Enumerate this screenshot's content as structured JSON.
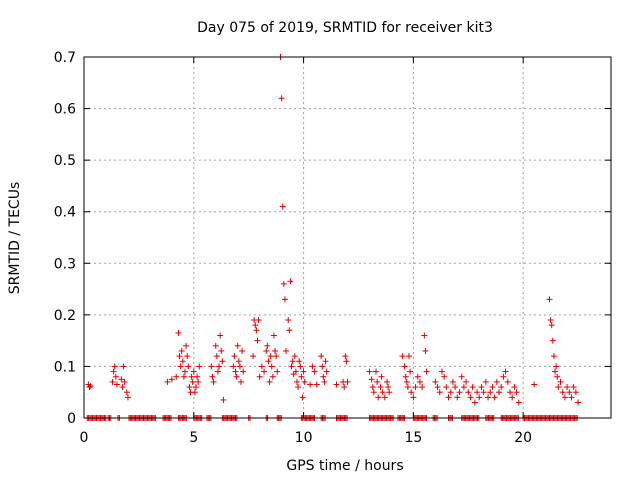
{
  "chart_data": {
    "type": "scatter",
    "title": "Day 075 of 2019, SRMTID for receiver kit3",
    "xlabel": "GPS time / hours",
    "ylabel": "SRMTID / TECUs",
    "xlim": [
      0,
      24
    ],
    "ylim": [
      0,
      0.7
    ],
    "x_ticks": [
      "0",
      "5",
      "10",
      "15",
      "20"
    ],
    "y_ticks": [
      "0",
      "0.1",
      "0.2",
      "0.3",
      "0.4",
      "0.5",
      "0.6",
      "0.7"
    ],
    "x_tick_values": [
      0,
      5,
      10,
      15,
      20
    ],
    "y_tick_values": [
      0,
      0.1,
      0.2,
      0.3,
      0.4,
      0.5,
      0.6,
      0.7
    ],
    "grid": true,
    "marker": "+",
    "marker_color": "#e00000",
    "series": [
      {
        "name": "kit3",
        "points": [
          [
            0.2,
            0.065
          ],
          [
            0.25,
            0.06
          ],
          [
            0.3,
            0.062
          ],
          [
            1.3,
            0.07
          ],
          [
            1.35,
            0.09
          ],
          [
            1.4,
            0.1
          ],
          [
            1.45,
            0.08
          ],
          [
            1.5,
            0.065
          ],
          [
            1.7,
            0.075
          ],
          [
            1.75,
            0.06
          ],
          [
            1.8,
            0.1
          ],
          [
            1.85,
            0.07
          ],
          [
            1.95,
            0.05
          ],
          [
            2.0,
            0.04
          ],
          [
            3.8,
            0.07
          ],
          [
            4.0,
            0.075
          ],
          [
            4.2,
            0.08
          ],
          [
            4.3,
            0.165
          ],
          [
            4.35,
            0.12
          ],
          [
            4.4,
            0.1
          ],
          [
            4.45,
            0.13
          ],
          [
            4.5,
            0.11
          ],
          [
            4.55,
            0.08
          ],
          [
            4.6,
            0.09
          ],
          [
            4.65,
            0.14
          ],
          [
            4.7,
            0.12
          ],
          [
            4.75,
            0.1
          ],
          [
            4.8,
            0.06
          ],
          [
            4.85,
            0.05
          ],
          [
            4.9,
            0.08
          ],
          [
            4.95,
            0.07
          ],
          [
            5.0,
            0.09
          ],
          [
            5.05,
            0.05
          ],
          [
            5.1,
            0.06
          ],
          [
            5.15,
            0.08
          ],
          [
            5.2,
            0.07
          ],
          [
            5.25,
            0.1
          ],
          [
            5.8,
            0.1
          ],
          [
            5.85,
            0.08
          ],
          [
            5.9,
            0.07
          ],
          [
            6.0,
            0.14
          ],
          [
            6.05,
            0.12
          ],
          [
            6.1,
            0.09
          ],
          [
            6.15,
            0.1
          ],
          [
            6.2,
            0.16
          ],
          [
            6.25,
            0.13
          ],
          [
            6.3,
            0.11
          ],
          [
            6.35,
            0.035
          ],
          [
            6.8,
            0.1
          ],
          [
            6.85,
            0.12
          ],
          [
            6.9,
            0.09
          ],
          [
            6.95,
            0.08
          ],
          [
            7.0,
            0.14
          ],
          [
            7.05,
            0.11
          ],
          [
            7.1,
            0.1
          ],
          [
            7.15,
            0.07
          ],
          [
            7.2,
            0.13
          ],
          [
            7.25,
            0.09
          ],
          [
            7.7,
            0.12
          ],
          [
            7.75,
            0.19
          ],
          [
            7.8,
            0.18
          ],
          [
            7.85,
            0.17
          ],
          [
            7.9,
            0.15
          ],
          [
            7.95,
            0.19
          ],
          [
            8.0,
            0.08
          ],
          [
            8.1,
            0.1
          ],
          [
            8.2,
            0.09
          ],
          [
            8.3,
            0.13
          ],
          [
            8.35,
            0.14
          ],
          [
            8.4,
            0.11
          ],
          [
            8.45,
            0.07
          ],
          [
            8.5,
            0.12
          ],
          [
            8.55,
            0.1
          ],
          [
            8.6,
            0.08
          ],
          [
            8.65,
            0.16
          ],
          [
            8.7,
            0.13
          ],
          [
            8.75,
            0.12
          ],
          [
            8.8,
            0.09
          ],
          [
            8.95,
            0.7
          ],
          [
            9.0,
            0.62
          ],
          [
            9.05,
            0.41
          ],
          [
            9.1,
            0.26
          ],
          [
            9.15,
            0.23
          ],
          [
            9.2,
            0.13
          ],
          [
            9.3,
            0.19
          ],
          [
            9.35,
            0.17
          ],
          [
            9.4,
            0.265
          ],
          [
            9.45,
            0.1
          ],
          [
            9.5,
            0.11
          ],
          [
            9.55,
            0.085
          ],
          [
            9.6,
            0.12
          ],
          [
            9.65,
            0.09
          ],
          [
            9.7,
            0.07
          ],
          [
            9.75,
            0.06
          ],
          [
            9.8,
            0.11
          ],
          [
            9.85,
            0.1
          ],
          [
            9.9,
            0.08
          ],
          [
            9.95,
            0.04
          ],
          [
            10.0,
            0.09
          ],
          [
            10.05,
            0.07
          ],
          [
            10.3,
            0.065
          ],
          [
            10.4,
            0.1
          ],
          [
            10.5,
            0.09
          ],
          [
            10.6,
            0.065
          ],
          [
            10.8,
            0.12
          ],
          [
            10.85,
            0.1
          ],
          [
            10.9,
            0.08
          ],
          [
            10.95,
            0.07
          ],
          [
            11.0,
            0.11
          ],
          [
            11.05,
            0.09
          ],
          [
            11.5,
            0.065
          ],
          [
            11.8,
            0.07
          ],
          [
            11.85,
            0.06
          ],
          [
            11.9,
            0.12
          ],
          [
            11.95,
            0.11
          ],
          [
            12.0,
            0.07
          ],
          [
            13.0,
            0.09
          ],
          [
            13.1,
            0.075
          ],
          [
            13.15,
            0.06
          ],
          [
            13.2,
            0.05
          ],
          [
            13.3,
            0.09
          ],
          [
            13.35,
            0.07
          ],
          [
            13.4,
            0.04
          ],
          [
            13.5,
            0.06
          ],
          [
            13.55,
            0.08
          ],
          [
            13.6,
            0.05
          ],
          [
            13.7,
            0.04
          ],
          [
            13.8,
            0.07
          ],
          [
            13.85,
            0.06
          ],
          [
            13.9,
            0.05
          ],
          [
            14.5,
            0.12
          ],
          [
            14.6,
            0.1
          ],
          [
            14.65,
            0.08
          ],
          [
            14.7,
            0.07
          ],
          [
            14.75,
            0.06
          ],
          [
            14.8,
            0.12
          ],
          [
            14.85,
            0.09
          ],
          [
            14.9,
            0.05
          ],
          [
            15.0,
            0.04
          ],
          [
            15.1,
            0.06
          ],
          [
            15.2,
            0.08
          ],
          [
            15.3,
            0.07
          ],
          [
            15.4,
            0.06
          ],
          [
            15.5,
            0.16
          ],
          [
            15.55,
            0.13
          ],
          [
            15.6,
            0.09
          ],
          [
            16.0,
            0.07
          ],
          [
            16.1,
            0.06
          ],
          [
            16.2,
            0.05
          ],
          [
            16.3,
            0.09
          ],
          [
            16.4,
            0.08
          ],
          [
            16.5,
            0.06
          ],
          [
            16.6,
            0.04
          ],
          [
            16.7,
            0.05
          ],
          [
            16.8,
            0.07
          ],
          [
            16.9,
            0.06
          ],
          [
            17.0,
            0.04
          ],
          [
            17.1,
            0.05
          ],
          [
            17.2,
            0.08
          ],
          [
            17.3,
            0.06
          ],
          [
            17.4,
            0.07
          ],
          [
            17.5,
            0.05
          ],
          [
            17.6,
            0.04
          ],
          [
            17.7,
            0.06
          ],
          [
            17.8,
            0.03
          ],
          [
            17.9,
            0.05
          ],
          [
            18.0,
            0.04
          ],
          [
            18.1,
            0.06
          ],
          [
            18.2,
            0.05
          ],
          [
            18.3,
            0.07
          ],
          [
            18.4,
            0.04
          ],
          [
            18.5,
            0.05
          ],
          [
            18.6,
            0.06
          ],
          [
            18.7,
            0.04
          ],
          [
            18.8,
            0.07
          ],
          [
            18.9,
            0.05
          ],
          [
            19.0,
            0.06
          ],
          [
            19.1,
            0.08
          ],
          [
            19.2,
            0.09
          ],
          [
            19.3,
            0.07
          ],
          [
            19.4,
            0.05
          ],
          [
            19.5,
            0.04
          ],
          [
            19.6,
            0.06
          ],
          [
            19.7,
            0.05
          ],
          [
            19.8,
            0.03
          ],
          [
            20.5,
            0.065
          ],
          [
            21.2,
            0.23
          ],
          [
            21.25,
            0.19
          ],
          [
            21.3,
            0.18
          ],
          [
            21.35,
            0.15
          ],
          [
            21.4,
            0.12
          ],
          [
            21.45,
            0.09
          ],
          [
            21.5,
            0.1
          ],
          [
            21.55,
            0.08
          ],
          [
            21.6,
            0.06
          ],
          [
            21.7,
            0.07
          ],
          [
            21.8,
            0.05
          ],
          [
            21.9,
            0.04
          ],
          [
            22.0,
            0.06
          ],
          [
            22.1,
            0.05
          ],
          [
            22.2,
            0.04
          ],
          [
            22.3,
            0.06
          ],
          [
            22.4,
            0.05
          ],
          [
            22.5,
            0.03
          ]
        ],
        "zero_runs": [
          [
            0.15,
            1.0
          ],
          [
            1.1,
            1.25
          ],
          [
            1.55,
            1.65
          ],
          [
            2.05,
            3.3
          ],
          [
            3.6,
            4.0
          ],
          [
            4.3,
            4.7
          ],
          [
            5.0,
            5.4
          ],
          [
            5.6,
            5.8
          ],
          [
            6.3,
            7.0
          ],
          [
            7.5,
            7.6
          ],
          [
            8.3,
            8.4
          ],
          [
            8.8,
            9.0
          ],
          [
            9.9,
            10.5
          ],
          [
            10.8,
            11.0
          ],
          [
            11.5,
            12.0
          ],
          [
            13.0,
            14.1
          ],
          [
            14.3,
            14.6
          ],
          [
            15.0,
            15.6
          ],
          [
            15.9,
            16.1
          ],
          [
            16.6,
            16.8
          ],
          [
            17.2,
            18.0
          ],
          [
            18.3,
            18.7
          ],
          [
            19.0,
            19.8
          ],
          [
            20.0,
            22.5
          ]
        ]
      }
    ]
  }
}
